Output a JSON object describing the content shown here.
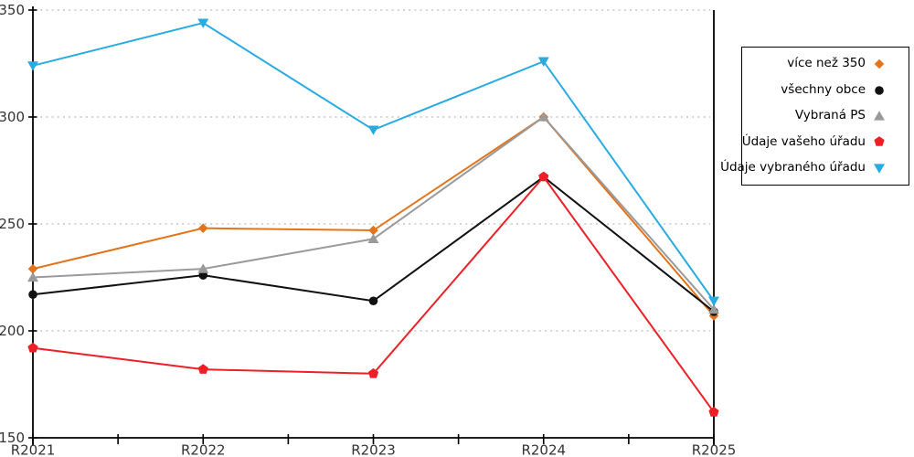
{
  "chart_data": {
    "type": "line",
    "title": "",
    "xlabel": "",
    "ylabel": "",
    "categories": [
      "R2021",
      "R2022",
      "R2023",
      "R2024",
      "R2025"
    ],
    "series": [
      {
        "name": "více než 350",
        "marker": "diamond",
        "color": "#E2741B",
        "values": [
          229,
          248,
          247,
          300,
          207
        ]
      },
      {
        "name": "všechny obce",
        "marker": "circle",
        "color": "#111111",
        "values": [
          217,
          226,
          214,
          272,
          209
        ]
      },
      {
        "name": "Vybraná PS",
        "marker": "triangle-up",
        "color": "#9A9A9A",
        "values": [
          225,
          229,
          243,
          300,
          210
        ]
      },
      {
        "name": "Údaje vašeho úřadu",
        "marker": "pentagon",
        "color": "#EC2026",
        "values": [
          192,
          182,
          180,
          272,
          162
        ]
      },
      {
        "name": "Údaje vybraného úřadu",
        "marker": "triangle-down",
        "color": "#29ABE2",
        "values": [
          324,
          344,
          294,
          326,
          214
        ]
      }
    ],
    "ylim": [
      150,
      350
    ],
    "yticks": [
      150,
      200,
      250,
      300,
      350
    ],
    "grid": "horizontal-dotted",
    "legend_position": "outside-right",
    "colors": {
      "axis": "#000000",
      "grid": "#BBBBBB",
      "tick_label": "#333333",
      "background": "#FFFFFF",
      "legend_border": "#000000"
    }
  }
}
